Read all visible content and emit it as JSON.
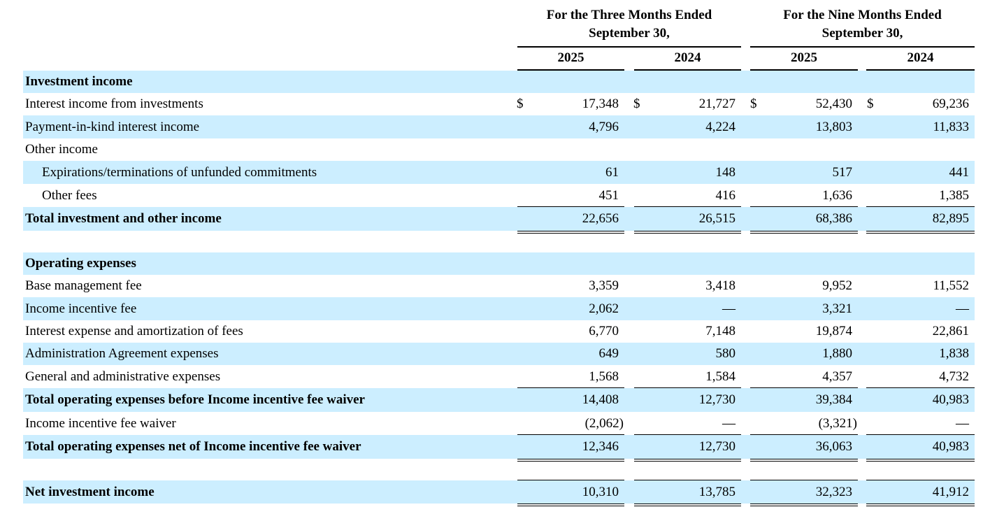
{
  "header": {
    "groups": [
      [
        "For the Three Months Ended",
        "September 30,"
      ],
      [
        "For the Nine Months Ended",
        "September 30,"
      ]
    ],
    "years": [
      "2025",
      "2024",
      "2025",
      "2024"
    ]
  },
  "table": {
    "rows": [
      {
        "label": "Investment income"
      },
      {
        "label": "Interest income from investments",
        "currency": [
          "$",
          "$",
          "$",
          "$"
        ],
        "values": [
          "17,348",
          "21,727",
          "52,430",
          "69,236"
        ]
      },
      {
        "label": "Payment-in-kind interest income",
        "values": [
          "4,796",
          "4,224",
          "13,803",
          "11,833"
        ]
      },
      {
        "label": "Other income"
      },
      {
        "label": "Expirations/terminations of unfunded commitments",
        "values": [
          "61",
          "148",
          "517",
          "441"
        ]
      },
      {
        "label": "Other fees",
        "values": [
          "451",
          "416",
          "1,636",
          "1,385"
        ]
      },
      {
        "label": "Total investment and other income",
        "values": [
          "22,656",
          "26,515",
          "68,386",
          "82,895"
        ]
      },
      {
        "label": "Operating expenses"
      },
      {
        "label": "Base management fee",
        "values": [
          "3,359",
          "3,418",
          "9,952",
          "11,552"
        ]
      },
      {
        "label": "Income incentive fee",
        "values": [
          "2,062",
          "—",
          "3,321",
          "—"
        ]
      },
      {
        "label": "Interest expense and amortization of fees",
        "values": [
          "6,770",
          "7,148",
          "19,874",
          "22,861"
        ]
      },
      {
        "label": "Administration Agreement expenses",
        "values": [
          "649",
          "580",
          "1,880",
          "1,838"
        ]
      },
      {
        "label": "General and administrative expenses",
        "values": [
          "1,568",
          "1,584",
          "4,357",
          "4,732"
        ]
      },
      {
        "label": "Total operating expenses before Income incentive fee waiver",
        "values": [
          "14,408",
          "12,730",
          "39,384",
          "40,983"
        ]
      },
      {
        "label": "Income incentive fee waiver",
        "values": [
          "(2,062)",
          "—",
          "(3,321)",
          "—"
        ]
      },
      {
        "label": "Total operating expenses net of Income incentive fee waiver",
        "values": [
          "12,346",
          "12,730",
          "36,063",
          "40,983"
        ]
      },
      {
        "label": "Net investment income",
        "values": [
          "10,310",
          "13,785",
          "32,323",
          "41,912"
        ]
      }
    ]
  }
}
